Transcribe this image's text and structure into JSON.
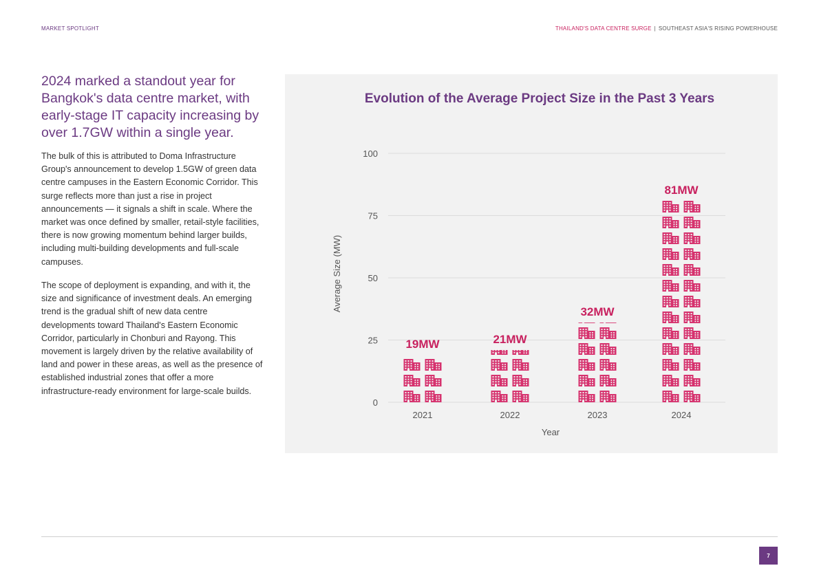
{
  "header": {
    "left": "MARKET SPOTLIGHT",
    "right_highlight": "THAILAND'S DATA CENTRE SURGE",
    "right_separator": "|",
    "right_rest": "SOUTHEAST ASIA'S RISING POWERHOUSE"
  },
  "article": {
    "lede": "2024 marked a standout year for Bangkok's data centre market, with early-stage IT capacity increasing by over 1.7GW within a single year.",
    "paragraphs": [
      "The bulk of this is attributed to Doma Infrastructure Group's announcement to develop 1.5GW of green data centre campuses in the Eastern Economic Corridor. This surge reflects more than just a rise in project announcements — it signals a shift in scale. Where the market was once defined by smaller, retail-style facilities, there is now growing momentum behind larger builds, including multi-building developments and full-scale campuses.",
      "The scope of deployment is expanding, and with it, the size and significance of investment deals. An emerging trend is the gradual shift of new data centre developments toward Thailand's Eastern Economic Corridor, particularly in Chonburi and Rayong. This movement is largely driven by the relative availability of land and power in these areas, as well as the presence of established industrial zones that offer a more infrastructure-ready environment for large-scale builds."
    ]
  },
  "chart_data": {
    "type": "bar",
    "style": "pictogram",
    "icon": "building-icon",
    "title": "Evolution of the Average Project Size in the Past 3 Years",
    "xlabel": "Year",
    "ylabel": "Average Size (MW)",
    "categories": [
      "2021",
      "2022",
      "2023",
      "2024"
    ],
    "values": [
      19,
      21,
      32,
      81
    ],
    "data_labels": [
      "19MW",
      "21MW",
      "32MW",
      "81MW"
    ],
    "yticks": [
      0,
      25,
      50,
      75,
      100
    ],
    "ylim": [
      0,
      100
    ],
    "grid": true,
    "colors": {
      "bar": "#d6326e",
      "title": "#6b3a82",
      "label": "#c8215f"
    }
  },
  "footer": {
    "page_number": "7"
  }
}
